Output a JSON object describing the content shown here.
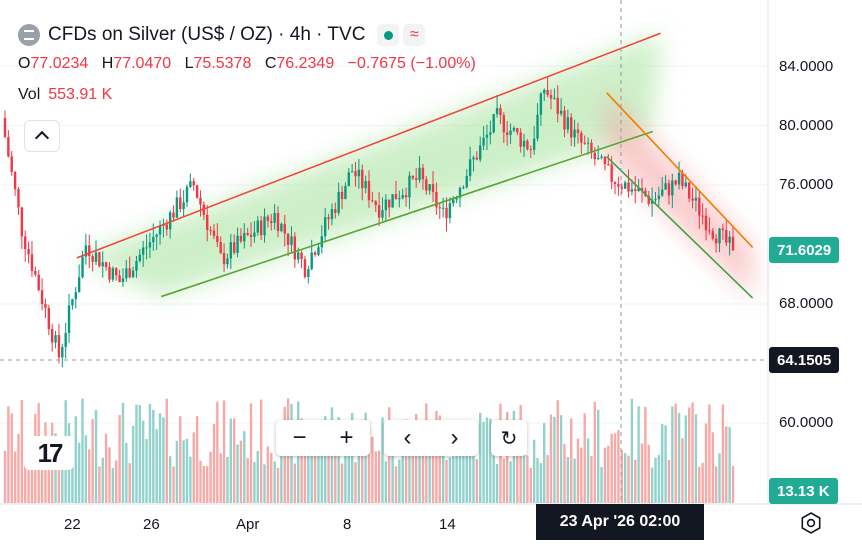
{
  "header": {
    "title": "CFDs on Silver (US$ / OZ) · 4h · TVC",
    "wave_glyph": "≈"
  },
  "ohlc": {
    "o_label": "O",
    "o": "77.0234",
    "h_label": "H",
    "h": "77.0470",
    "l_label": "L",
    "l": "75.5378",
    "c_label": "C",
    "c": "76.2349",
    "change": "−0.7675 (−1.00%)"
  },
  "volume": {
    "label": "Vol",
    "value": "553.91 K"
  },
  "price_axis": {
    "ticks": [
      "84.0000",
      "80.0000",
      "76.0000",
      "68.0000",
      "60.0000"
    ],
    "last_price": "71.6029",
    "crosshair_price": "64.1505",
    "volume_tag": "13.13 K"
  },
  "time_axis": {
    "ticks": [
      "22",
      "26",
      "Apr",
      "8",
      "14"
    ],
    "crosshair_time": "23 Apr '26   02:00"
  },
  "toolbar": {
    "zoom_out": "−",
    "zoom_in": "+",
    "scroll_left": "‹",
    "scroll_right": "›",
    "reset": "↻"
  },
  "logo_text": "17",
  "colors": {
    "up": "#089981",
    "down": "#f23645",
    "up_volume": "#92d2cc",
    "down_volume": "#f7a9a7",
    "upper_channel": "#f44336",
    "lower_channel": "#55a630",
    "fall_upper": "#f57c00",
    "fall_lower": "#43a047",
    "label_green": "#22ab94",
    "label_dark": "#131722"
  },
  "chart_data": {
    "type": "candlestick",
    "interval": "4h",
    "y_axis_ticks": [
      84,
      80,
      76,
      68,
      60
    ],
    "last_price": 71.6029,
    "segments": [
      {
        "start": 80.5,
        "end": 73,
        "count": 6
      },
      {
        "start": 73,
        "end": 64.5,
        "count": 11
      },
      {
        "start": 64.5,
        "end": 72,
        "count": 8
      },
      {
        "start": 72,
        "end": 69.5,
        "count": 10
      },
      {
        "start": 69.5,
        "end": 76,
        "count": 22
      },
      {
        "start": 76,
        "end": 71,
        "count": 8
      },
      {
        "start": 71,
        "end": 74,
        "count": 16
      },
      {
        "start": 74,
        "end": 70.5,
        "count": 9
      },
      {
        "start": 70.5,
        "end": 77,
        "count": 14
      },
      {
        "start": 77,
        "end": 74.5,
        "count": 8
      },
      {
        "start": 74.5,
        "end": 76.5,
        "count": 12
      },
      {
        "start": 76.5,
        "end": 74,
        "count": 7
      },
      {
        "start": 74,
        "end": 80.5,
        "count": 16
      },
      {
        "start": 80.5,
        "end": 78.5,
        "count": 10
      },
      {
        "start": 78.5,
        "end": 82.5,
        "count": 4
      },
      {
        "start": 82.5,
        "end": 79,
        "count": 10
      },
      {
        "start": 79,
        "end": 76.5,
        "count": 10
      },
      {
        "start": 76.5,
        "end": 75,
        "count": 12
      },
      {
        "start": 75,
        "end": 76.3,
        "count": 8
      },
      {
        "start": 76.3,
        "end": 73,
        "count": 10
      },
      {
        "start": 73,
        "end": 71.6,
        "count": 6
      }
    ],
    "trendlines": [
      {
        "name": "upper-channel",
        "from": [
          0.1,
          71.1
        ],
        "to": [
          0.86,
          86.2
        ]
      },
      {
        "name": "lower-channel",
        "from": [
          0.21,
          68.5
        ],
        "to": [
          0.85,
          79.6
        ]
      },
      {
        "name": "falling-upper",
        "from": [
          0.79,
          82.2
        ],
        "to": [
          0.98,
          71.8
        ]
      },
      {
        "name": "falling-lower",
        "from": [
          0.79,
          77.9
        ],
        "to": [
          0.98,
          68.4
        ]
      }
    ]
  }
}
